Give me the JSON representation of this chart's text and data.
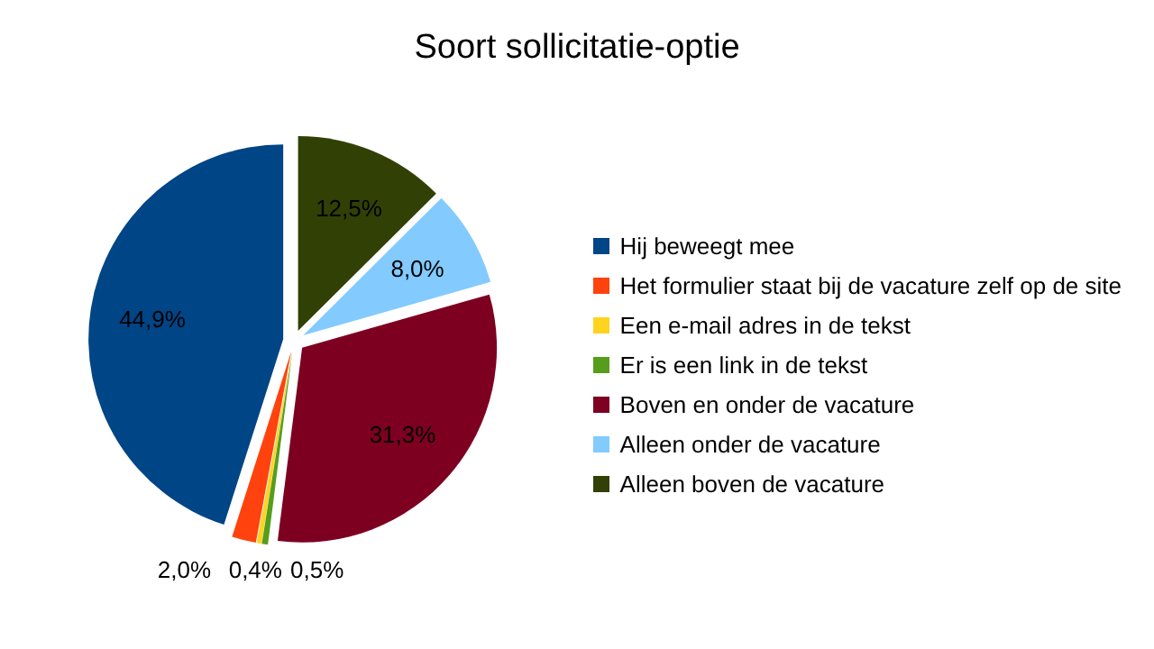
{
  "chart_data": {
    "type": "pie",
    "title": "Soort sollicitatie-optie",
    "categories": [
      "Hij beweegt mee",
      "Het formulier staat bij de vacature zelf op de site",
      "Een e-mail adres in de tekst",
      "Er is een link in de tekst",
      "Boven en onder de vacature",
      "Alleen onder de vacature",
      "Alleen boven de vacature"
    ],
    "values": [
      44.9,
      2.0,
      0.4,
      0.5,
      31.3,
      8.0,
      12.5
    ],
    "value_labels": [
      "44,9%",
      "2,0%",
      "0,4%",
      "0,5%",
      "31,3%",
      "8,0%",
      "12,5%"
    ],
    "colors": [
      "#004586",
      "#ff420e",
      "#ffd320",
      "#579d1c",
      "#7e0021",
      "#83caff",
      "#314004"
    ],
    "legend": "right"
  }
}
